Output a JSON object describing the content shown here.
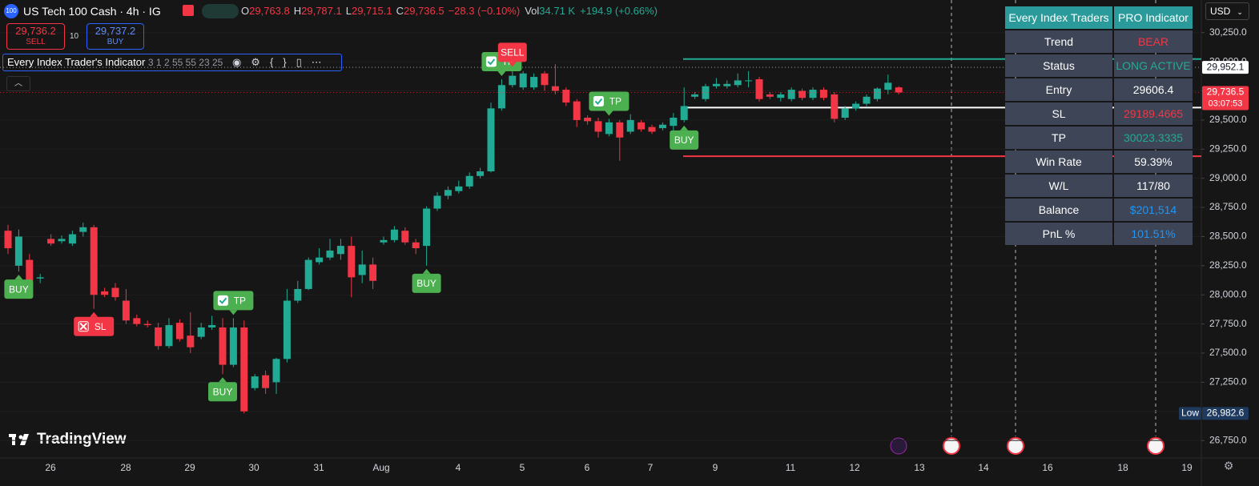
{
  "header": {
    "symbol_icon": "100",
    "symbol": "US Tech 100 Cash · 4h · IG",
    "ohlc": [
      [
        "O",
        "29,763.8"
      ],
      [
        "H",
        "29,787.1"
      ],
      [
        "L",
        "29,715.1"
      ],
      [
        "C",
        "29,736.5"
      ]
    ],
    "change": "−28.3 (−0.10%)",
    "vol_label": "Vol",
    "vol": "34.71 K",
    "vol_change": "+194.9 (+0.66%)",
    "sell_price": "29,736.2",
    "sell": "SELL",
    "spread": "10",
    "buy_price": "29,737.2",
    "buy": "BUY",
    "indicator": "Every Index Trader's Indicator",
    "indicator_params": "3 1 2 55 55 23 25",
    "currency": "USD"
  },
  "logo": "TradingView",
  "table": {
    "header": [
      "Every Index Traders",
      "PRO Indicator"
    ],
    "rows": [
      [
        "Trend",
        "BEAR"
      ],
      [
        "Status",
        "LONG ACTIVE"
      ],
      [
        "Entry",
        29606.4
      ],
      [
        "SL",
        29189.4665
      ],
      [
        "TP",
        30023.3335
      ],
      [
        "Win Rate",
        "59.39%"
      ],
      [
        "W/L",
        "117/80"
      ],
      [
        "Balance",
        "$201,514"
      ],
      [
        "PnL %",
        "101.51%"
      ]
    ],
    "value_colors": [
      "#f23645",
      "#22ab94",
      "#ffffff",
      "#f23645",
      "#22ab94",
      "#ffffff",
      "#ffffff",
      "#2196f3",
      "#2196f3"
    ]
  },
  "chart_data": {
    "type": "candlestick",
    "up_color": "#22ab94",
    "down_color": "#f23645",
    "ylim": [
      26600,
      30530
    ],
    "yticks": [
      {
        "value": 30250,
        "label": "30,250.0"
      },
      {
        "value": 30000,
        "label": "30,000.0"
      },
      {
        "value": 29750,
        "label": "29,750.0"
      },
      {
        "value": 29500,
        "label": "29,500.0"
      },
      {
        "value": 29250,
        "label": "29,250.0"
      },
      {
        "value": 29000,
        "label": "29,000.0"
      },
      {
        "value": 28750,
        "label": "28,750.0"
      },
      {
        "value": 28500,
        "label": "28,500.0"
      },
      {
        "value": 28250,
        "label": "28,250.0"
      },
      {
        "value": 28000,
        "label": "28,000.0"
      },
      {
        "value": 27750,
        "label": "27,750.0"
      },
      {
        "value": 27500,
        "label": "27,500.0"
      },
      {
        "value": 27250,
        "label": "27,250.0"
      },
      {
        "value": 27000,
        "label": "27,000.0"
      },
      {
        "value": 26750,
        "label": "26,750.0"
      }
    ],
    "x_labels": [
      "26",
      "28",
      "29",
      "30",
      "31",
      "Aug",
      "4",
      "5",
      "6",
      "7",
      "9",
      "11",
      "12",
      "13",
      "14",
      "16",
      "18",
      "19"
    ],
    "open": [
      28550,
      28250,
      28300,
      28140,
      28480,
      28460,
      28440,
      28540,
      28580,
      28030,
      28060,
      27950,
      27800,
      27750,
      27720,
      27560,
      27760,
      27650,
      27640,
      27720,
      27720,
      27400,
      27720,
      27200,
      27310,
      27250,
      27450,
      27950,
      28050,
      28280,
      28320,
      28350,
      28420,
      28170,
      28260,
      28450,
      28470,
      28550,
      28450,
      28420,
      28740,
      28850,
      28890,
      28930,
      29020,
      29060,
      29600,
      29800,
      29780,
      29780,
      29900,
      29790,
      29760,
      29660,
      29520,
      29490,
      29380,
      29480,
      29400,
      29480,
      29440,
      29430,
      29450,
      29500,
      29700,
      29680,
      29790,
      29790,
      29800,
      29840,
      29850,
      29720,
      29690,
      29680,
      29750,
      29690,
      29760,
      29720,
      29520,
      29600,
      29640,
      29680,
      29760,
      29780
    ],
    "high": [
      28600,
      28560,
      28350,
      28180,
      28520,
      28510,
      28550,
      28620,
      28600,
      28060,
      28100,
      28050,
      27830,
      27780,
      27760,
      27800,
      27790,
      27850,
      27760,
      27820,
      27800,
      27800,
      27780,
      27320,
      27350,
      27460,
      28050,
      28120,
      28320,
      28400,
      28480,
      28480,
      28500,
      28380,
      28320,
      28500,
      28590,
      28580,
      28480,
      28760,
      28880,
      28930,
      28980,
      29050,
      29090,
      29650,
      29850,
      29930,
      29920,
      29900,
      29920,
      29980,
      29780,
      29680,
      29540,
      29520,
      29510,
      29500,
      29550,
      29500,
      29460,
      29480,
      29560,
      29780,
      29740,
      29810,
      29860,
      29840,
      29900,
      29920,
      29870,
      29740,
      29740,
      29780,
      29770,
      29780,
      29780,
      29740,
      29620,
      29660,
      29720,
      29780,
      29890,
      29790
    ],
    "low": [
      28350,
      28200,
      28080,
      28100,
      28420,
      28440,
      28420,
      28500,
      27880,
      27980,
      27950,
      27750,
      27730,
      27720,
      27530,
      27540,
      27600,
      27500,
      27620,
      27700,
      27320,
      27380,
      26982.6,
      27180,
      27150,
      27150,
      27420,
      27930,
      28040,
      28260,
      28300,
      28300,
      27980,
      28100,
      28050,
      28430,
      28450,
      28430,
      28350,
      28250,
      28720,
      28820,
      28870,
      28910,
      29000,
      29050,
      29580,
      29780,
      29760,
      29760,
      29750,
      29720,
      29620,
      29440,
      29460,
      29350,
      29360,
      29150,
      29380,
      29400,
      29380,
      29410,
      29380,
      29480,
      29680,
      29660,
      29770,
      29770,
      29780,
      29780,
      29660,
      29680,
      29660,
      29660,
      29670,
      29670,
      29670,
      29480,
      29500,
      29580,
      29620,
      29660,
      29720,
      29720
    ],
    "close": [
      28400,
      28500,
      28120,
      28150,
      28440,
      28480,
      28520,
      28580,
      28000,
      28000,
      27980,
      27780,
      27750,
      27740,
      27560,
      27740,
      27620,
      27550,
      27720,
      27740,
      27400,
      27720,
      27000,
      27300,
      27200,
      27450,
      27950,
      28050,
      28300,
      28320,
      28380,
      28420,
      28150,
      28260,
      28120,
      28470,
      28560,
      28450,
      28400,
      28740,
      28850,
      28900,
      28930,
      29020,
      29060,
      29600,
      29800,
      29880,
      29900,
      29870,
      29800,
      29750,
      29650,
      29500,
      29490,
      29400,
      29480,
      29350,
      29500,
      29420,
      29400,
      29460,
      29520,
      29620,
      29720,
      29790,
      29810,
      29810,
      29840,
      29840,
      29680,
      29700,
      29720,
      29760,
      29690,
      29760,
      29690,
      29510,
      29600,
      29640,
      29700,
      29770,
      29820,
      29736.5
    ],
    "signals": [
      null,
      {
        "text": "BUY",
        "color": "#4caf50",
        "side": "below"
      },
      null,
      null,
      null,
      null,
      null,
      null,
      {
        "text": "SL",
        "color": "#f23645",
        "side": "below",
        "icon": "cross"
      },
      null,
      null,
      null,
      null,
      null,
      null,
      null,
      null,
      null,
      null,
      null,
      {
        "text": "BUY",
        "color": "#4caf50",
        "side": "below"
      },
      {
        "text": "TP",
        "color": "#4caf50",
        "side": "above",
        "icon": "check"
      },
      null,
      null,
      null,
      null,
      null,
      null,
      null,
      null,
      null,
      null,
      null,
      null,
      null,
      null,
      null,
      null,
      null,
      {
        "text": "BUY",
        "color": "#4caf50",
        "side": "below"
      },
      null,
      null,
      null,
      null,
      null,
      null,
      {
        "text": "TP",
        "color": "#4caf50",
        "side": "above",
        "icon": "check"
      },
      {
        "text": "SELL",
        "color": "#f23645",
        "side": "above"
      },
      null,
      null,
      null,
      null,
      null,
      null,
      null,
      null,
      {
        "text": "TP",
        "color": "#4caf50",
        "side": "above",
        "icon": "check"
      },
      null,
      null,
      null,
      null,
      null,
      null,
      {
        "text": "BUY",
        "color": "#4caf50",
        "side": "below"
      },
      null,
      null,
      null,
      null,
      null,
      null,
      null,
      null,
      null,
      null,
      null,
      null,
      null,
      null,
      null,
      null,
      null,
      null,
      null,
      null
    ],
    "price_labels": [
      {
        "value": 29952.1,
        "label": "29,952.1",
        "color": "#ffffff",
        "text_color": "#131722"
      },
      {
        "value": 29736.5,
        "label": "29,736.5",
        "sublabel": "03:07:53",
        "color": "#f23645",
        "text_color": "#ffffff"
      },
      {
        "value": 26982.6,
        "label": "26,982.6",
        "tag": "Low",
        "color": "#1e3a5f",
        "text_color": "#ffffff"
      }
    ]
  }
}
